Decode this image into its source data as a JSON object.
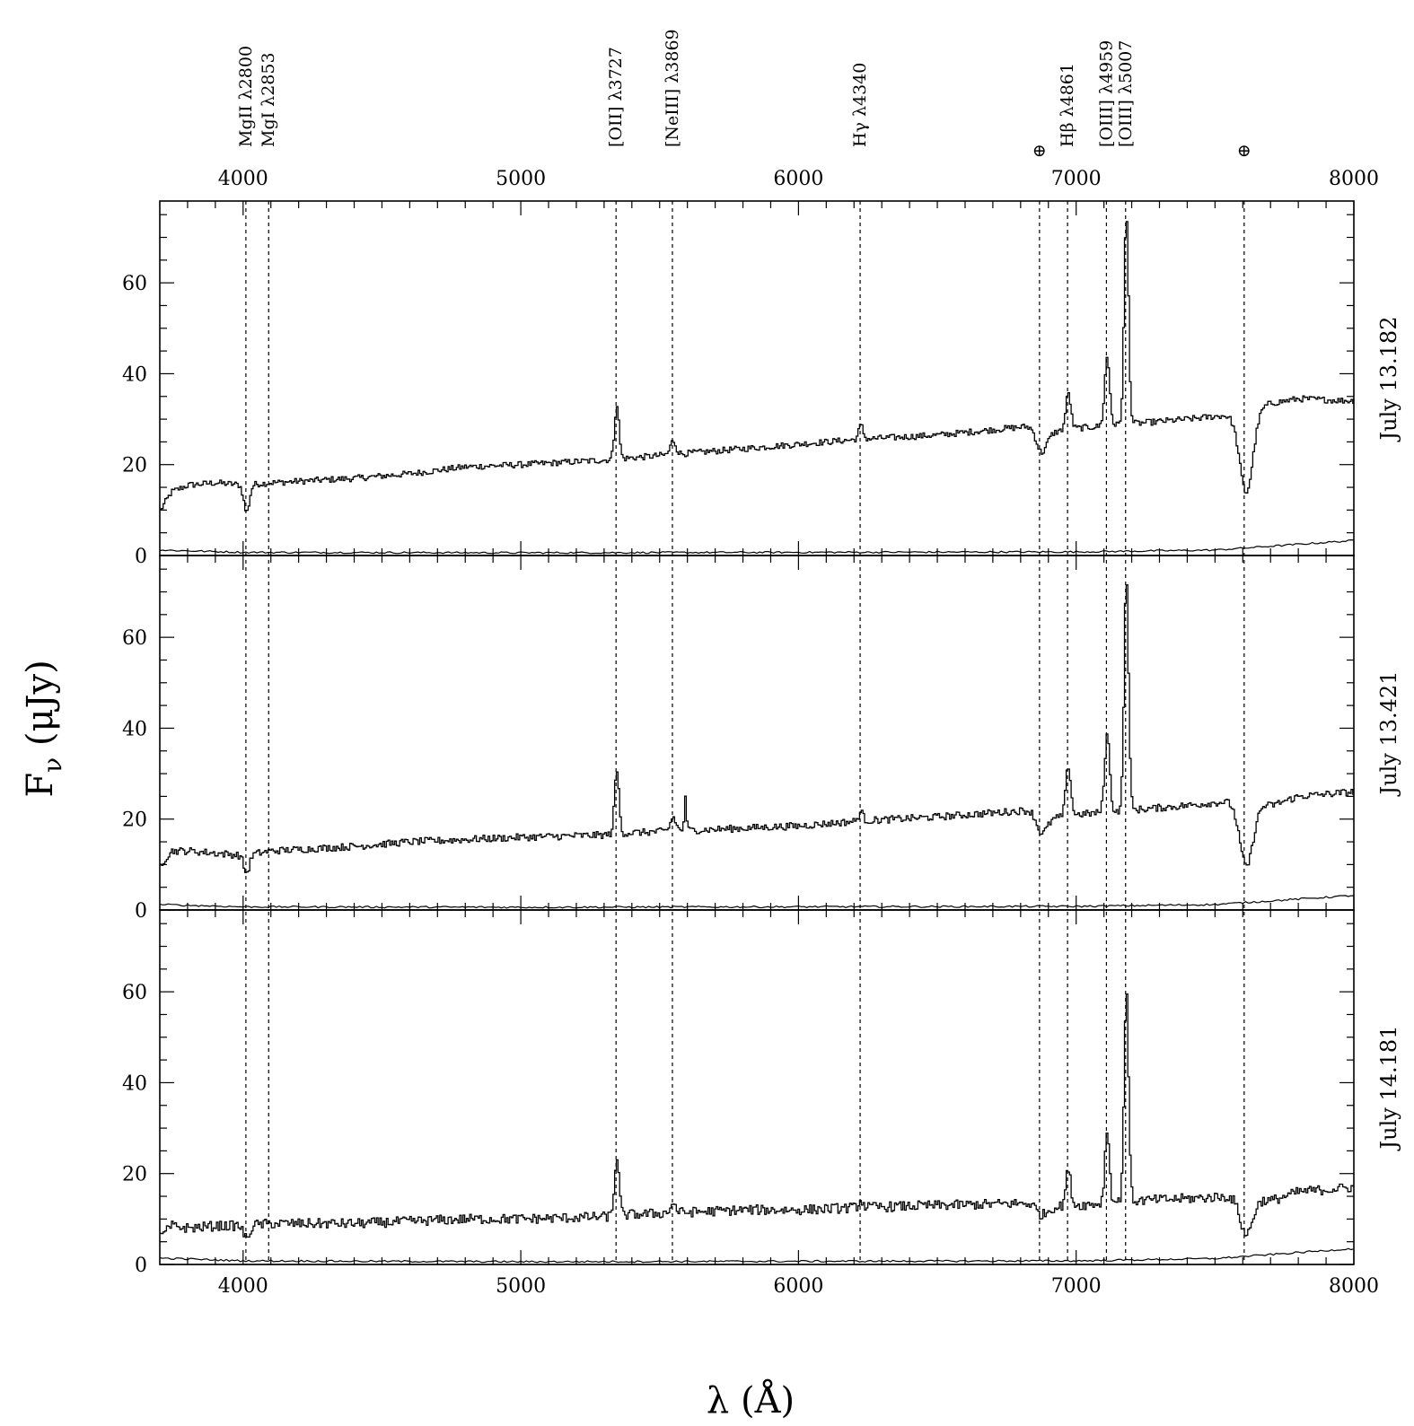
{
  "chart_data": {
    "type": "line",
    "xlabel": "λ (Å)",
    "ylabel": "F",
    "ylabel_subscript": "ν",
    "ylabel_unit": " (μJy)",
    "xlim": [
      3700,
      8000
    ],
    "ylim": [
      0,
      78
    ],
    "x_ticks": [
      4000,
      5000,
      6000,
      7000,
      8000
    ],
    "y_ticks": [
      0,
      20,
      40,
      60
    ],
    "grid": false,
    "line_markers": [
      {
        "x": 4010,
        "label": "MgII λ2800"
      },
      {
        "x": 4092,
        "label": "MgI λ2853"
      },
      {
        "x": 5343,
        "label": "[OII] λ3727"
      },
      {
        "x": 5546,
        "label": "[NeIII] λ3869"
      },
      {
        "x": 6222,
        "label": "Hγ λ4340"
      },
      {
        "x": 6868,
        "label": "⊕"
      },
      {
        "x": 6969,
        "label": "Hβ λ4861"
      },
      {
        "x": 7109,
        "label": "[OIII] λ4959"
      },
      {
        "x": 7178,
        "label": "[OIII] λ5007"
      },
      {
        "x": 7605,
        "label": "⊕"
      }
    ],
    "panels": [
      {
        "label": "July 13.182",
        "continuum": [
          [
            3700,
            10
          ],
          [
            3740,
            14
          ],
          [
            3800,
            15.5
          ],
          [
            3900,
            16
          ],
          [
            4000,
            15.5
          ],
          [
            4100,
            16
          ],
          [
            4400,
            17
          ],
          [
            4600,
            18
          ],
          [
            4800,
            19.5
          ],
          [
            5000,
            20
          ],
          [
            5300,
            21
          ],
          [
            5400,
            21.5
          ],
          [
            5600,
            22.5
          ],
          [
            5800,
            23.5
          ],
          [
            6000,
            24.5
          ],
          [
            6200,
            25.5
          ],
          [
            6500,
            26.5
          ],
          [
            6840,
            28.5
          ],
          [
            6900,
            27
          ],
          [
            7000,
            28
          ],
          [
            7200,
            29
          ],
          [
            7400,
            30
          ],
          [
            7560,
            31
          ],
          [
            7700,
            33.5
          ],
          [
            7800,
            34.5
          ],
          [
            8000,
            34
          ]
        ],
        "features": [
          {
            "x": 4010,
            "height": -6,
            "width": 10
          },
          {
            "x": 5343,
            "height": 12,
            "width": 8
          },
          {
            "x": 5546,
            "height": 3,
            "width": 10
          },
          {
            "x": 6222,
            "height": 3,
            "width": 8
          },
          {
            "x": 6872,
            "height": -5,
            "width": 18
          },
          {
            "x": 6969,
            "height": 8,
            "width": 9
          },
          {
            "x": 7109,
            "height": 15,
            "width": 9
          },
          {
            "x": 7178,
            "height": 46,
            "width": 8
          },
          {
            "x": 7610,
            "height": -18,
            "width": 24
          }
        ],
        "noise": 0.7,
        "error": [
          [
            3700,
            1.2
          ],
          [
            4000,
            0.7
          ],
          [
            5000,
            0.6
          ],
          [
            6000,
            0.7
          ],
          [
            7000,
            0.8
          ],
          [
            7500,
            1.2
          ],
          [
            8000,
            3.3
          ]
        ]
      },
      {
        "label": "July 13.421",
        "continuum": [
          [
            3700,
            10
          ],
          [
            3740,
            13
          ],
          [
            3800,
            13
          ],
          [
            3900,
            12.5
          ],
          [
            4000,
            12
          ],
          [
            4100,
            13
          ],
          [
            4400,
            14
          ],
          [
            4600,
            15
          ],
          [
            4800,
            15.5
          ],
          [
            5000,
            16
          ],
          [
            5300,
            16.5
          ],
          [
            5400,
            17
          ],
          [
            5600,
            17.5
          ],
          [
            5800,
            18
          ],
          [
            6000,
            18.5
          ],
          [
            6200,
            19.5
          ],
          [
            6500,
            20.5
          ],
          [
            6840,
            22
          ],
          [
            6900,
            20
          ],
          [
            7000,
            21
          ],
          [
            7200,
            22
          ],
          [
            7400,
            23
          ],
          [
            7560,
            24
          ],
          [
            7700,
            23
          ],
          [
            7800,
            25
          ],
          [
            8000,
            26
          ]
        ],
        "features": [
          {
            "x": 4010,
            "height": -4,
            "width": 10
          },
          {
            "x": 5343,
            "height": 14,
            "width": 8
          },
          {
            "x": 5546,
            "height": 3,
            "width": 10
          },
          {
            "x": 5590,
            "height": 7,
            "width": 4
          },
          {
            "x": 6222,
            "height": 2,
            "width": 8
          },
          {
            "x": 6872,
            "height": -4,
            "width": 18
          },
          {
            "x": 6969,
            "height": 11,
            "width": 9
          },
          {
            "x": 7109,
            "height": 17,
            "width": 9
          },
          {
            "x": 7178,
            "height": 51,
            "width": 8
          },
          {
            "x": 7610,
            "height": -14,
            "width": 24
          }
        ],
        "noise": 0.8,
        "error": [
          [
            3700,
            1.2
          ],
          [
            4000,
            0.7
          ],
          [
            5000,
            0.6
          ],
          [
            6000,
            0.7
          ],
          [
            7000,
            0.8
          ],
          [
            7500,
            1.2
          ],
          [
            8000,
            3.2
          ]
        ]
      },
      {
        "label": "July 14.181",
        "continuum": [
          [
            3700,
            6
          ],
          [
            3740,
            8.5
          ],
          [
            3800,
            8
          ],
          [
            3900,
            8.5
          ],
          [
            4000,
            8.5
          ],
          [
            4100,
            9
          ],
          [
            4400,
            9
          ],
          [
            4600,
            9.5
          ],
          [
            4800,
            10
          ],
          [
            5000,
            10
          ],
          [
            5300,
            10.5
          ],
          [
            5400,
            11
          ],
          [
            5600,
            11.5
          ],
          [
            5800,
            12
          ],
          [
            6000,
            12
          ],
          [
            6200,
            12.5
          ],
          [
            6500,
            13
          ],
          [
            6840,
            13.5
          ],
          [
            6900,
            12.5
          ],
          [
            7000,
            13
          ],
          [
            7200,
            14
          ],
          [
            7400,
            14.5
          ],
          [
            7560,
            15
          ],
          [
            7700,
            14
          ],
          [
            7800,
            16
          ],
          [
            8000,
            17
          ]
        ],
        "features": [
          {
            "x": 4010,
            "height": -3,
            "width": 10
          },
          {
            "x": 5343,
            "height": 13,
            "width": 8
          },
          {
            "x": 5546,
            "height": 2,
            "width": 10
          },
          {
            "x": 6222,
            "height": 1.5,
            "width": 8
          },
          {
            "x": 6872,
            "height": -2,
            "width": 18
          },
          {
            "x": 6969,
            "height": 8,
            "width": 9
          },
          {
            "x": 7109,
            "height": 16,
            "width": 8
          },
          {
            "x": 7178,
            "height": 46,
            "width": 8
          },
          {
            "x": 7610,
            "height": -8,
            "width": 22
          }
        ],
        "noise": 1.1,
        "error": [
          [
            3700,
            1.4
          ],
          [
            4000,
            0.8
          ],
          [
            5000,
            0.6
          ],
          [
            6000,
            0.7
          ],
          [
            7000,
            0.8
          ],
          [
            7500,
            1.3
          ],
          [
            8000,
            3.5
          ]
        ]
      }
    ]
  }
}
